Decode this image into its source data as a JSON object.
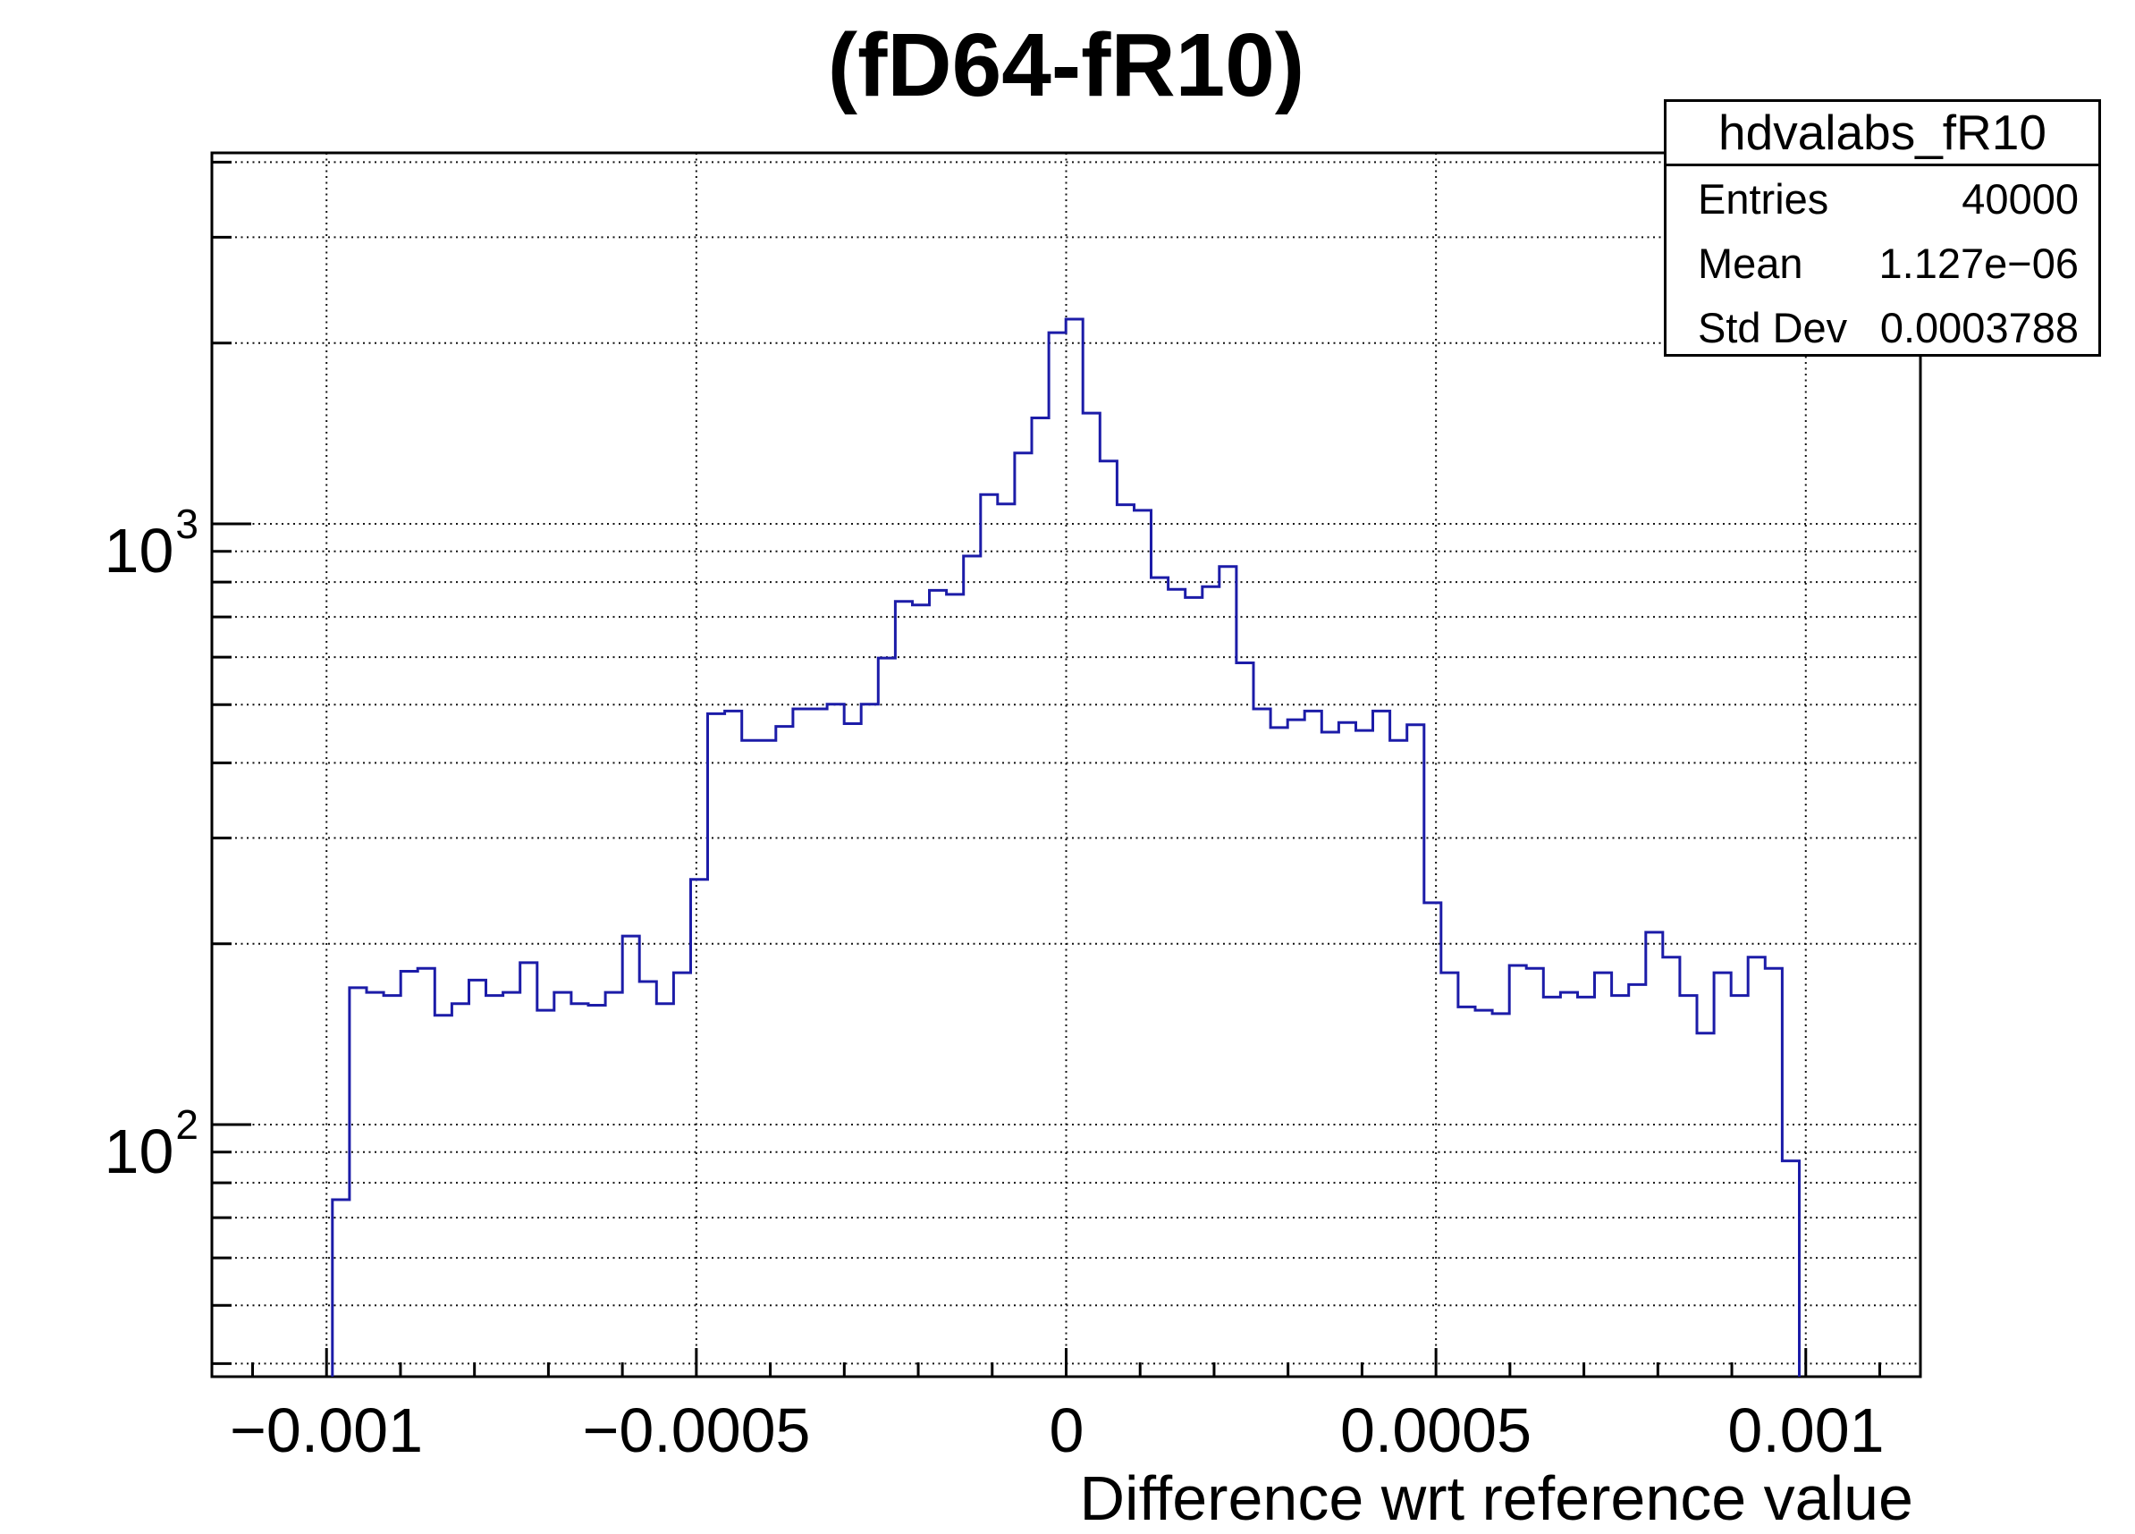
{
  "chart": {
    "title": "(fD64-fR10)",
    "x_axis": {
      "title": "Difference wrt reference value",
      "tick_labels": [
        "−0.001",
        "−0.0005",
        "0",
        "0.0005",
        "0.001"
      ],
      "tick_values": [
        -0.001,
        -0.0005,
        0,
        0.0005,
        0.001
      ],
      "minor_tick_step": 0.0001,
      "range": [
        -0.001155,
        0.001155
      ]
    },
    "y_axis": {
      "scale": "log",
      "range_approx": [
        38,
        4150
      ],
      "labels": [
        {
          "base": "10",
          "exp": "3",
          "value": 1000
        },
        {
          "base": "10",
          "exp": "2",
          "value": 100
        }
      ],
      "gridline_values": [
        40,
        50,
        60,
        70,
        80,
        90,
        100,
        200,
        300,
        400,
        500,
        600,
        700,
        800,
        900,
        1000,
        2000,
        3000,
        4000
      ],
      "major_values": [
        100,
        1000
      ]
    },
    "stats_box": {
      "title": "hdvalabs_fR10",
      "rows": [
        {
          "label": "Entries",
          "value": "40000"
        },
        {
          "label": "Mean",
          "value": "1.127e−06"
        },
        {
          "label": "Std Dev",
          "value": "0.0003788"
        }
      ]
    },
    "colors": {
      "line": "#1c1ca8",
      "grid": "#111111",
      "frame": "#000000",
      "background": "#ffffff"
    }
  },
  "chart_data": {
    "type": "histogram",
    "style": "step-line",
    "title": "(fD64-fR10)",
    "xlabel": "Difference wrt reference value",
    "ylabel": "",
    "y_scale": "log",
    "xlim": [
      -0.001155,
      0.001155
    ],
    "ylim_approx": [
      38,
      4150
    ],
    "grid": true,
    "legend": "none",
    "entries": 40000,
    "mean": 1.127e-06,
    "std_dev": 0.0003788,
    "bins": {
      "first_edge": -0.000992,
      "bin_width": 2.306e-05,
      "n_bins": 86,
      "counts": [
        75,
        169,
        166,
        164,
        180,
        182,
        152,
        159,
        174,
        164,
        166,
        186,
        155,
        166,
        159,
        158,
        166,
        206,
        173,
        159,
        179,
        256,
        483,
        488,
        436,
        436,
        460,
        492,
        492,
        501,
        465,
        501,
        598,
        743,
        733,
        775,
        763,
        884,
        1119,
        1079,
        1312,
        1501,
        2081,
        2192,
        1529,
        1272,
        1076,
        1053,
        814,
        778,
        754,
        786,
        849,
        587,
        492,
        458,
        472,
        488,
        450,
        467,
        453,
        488,
        436,
        463,
        234,
        179,
        157,
        155,
        153,
        184,
        182,
        163,
        166,
        163,
        179,
        164,
        171,
        209,
        190,
        164,
        142,
        179,
        164,
        190,
        182,
        87
      ]
    }
  }
}
